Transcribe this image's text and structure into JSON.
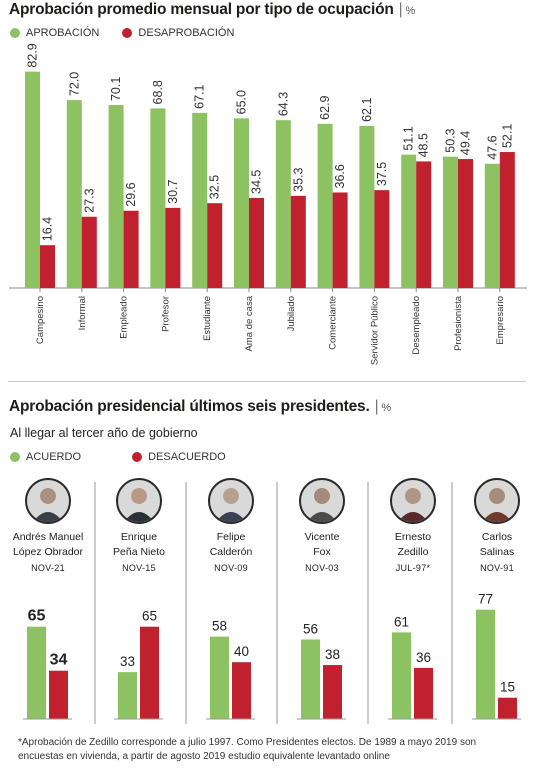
{
  "colors": {
    "approve": "#8dc262",
    "disapprove": "#c1212f"
  },
  "section1": {
    "title": "Aprobación promedio mensual por tipo de ocupación",
    "unit": "%",
    "legend": {
      "approve": "APROBACIÓN",
      "disapprove": "DESAPROBACIÓN"
    }
  },
  "section2": {
    "title": "Aprobación presidencial últimos seis presidentes.",
    "unit": "%",
    "subtitle": "Al llegar al tercer año de gobierno",
    "legend": {
      "approve": "ACUERDO",
      "disapprove": "DESACUERDO"
    }
  },
  "presidents": [
    {
      "name_line1": "Andrés Manuel",
      "name_line2": "López Obrador",
      "date": "NOV-21"
    },
    {
      "name_line1": "Enrique",
      "name_line2": "Peña Nieto",
      "date": "NOV-15"
    },
    {
      "name_line1": "Felipe",
      "name_line2": "Calderón",
      "date": "NOV-09"
    },
    {
      "name_line1": "Vicente",
      "name_line2": "Fox",
      "date": "NOV-03"
    },
    {
      "name_line1": "Ernesto",
      "name_line2": "Zedillo",
      "date": "JUL-97*"
    },
    {
      "name_line1": "Carlos",
      "name_line2": "Salinas",
      "date": "NOV-91"
    }
  ],
  "footnote": "*Aprobación de Zedillo corresponde a julio 1997. Como Presidentes electos. De 1989 a mayo 2019 son encuestas en vivienda, a partir de agosto 2019 estudio equivalente levantado online",
  "chart_data": [
    {
      "type": "bar",
      "title": "Aprobación promedio mensual por tipo de ocupación",
      "categories": [
        "Campesino",
        "Informal",
        "Empleado",
        "Profesor",
        "Estudiante",
        "Ama de casa",
        "Jubilado",
        "Comerciante",
        "Servidor Público",
        "Desempleado",
        "Profesionista",
        "Empresario"
      ],
      "series": [
        {
          "name": "APROBACIÓN",
          "values": [
            82.9,
            72.0,
            70.1,
            68.8,
            67.1,
            65.0,
            64.3,
            62.9,
            62.1,
            51.1,
            50.3,
            47.6
          ]
        },
        {
          "name": "DESAPROBACIÓN",
          "values": [
            16.4,
            27.3,
            29.6,
            30.7,
            32.5,
            34.5,
            35.3,
            36.6,
            37.5,
            48.5,
            49.4,
            52.1
          ]
        }
      ],
      "value_labels": {
        "approve": [
          "82.9",
          "72.0",
          "70.1",
          "68.8",
          "67.1",
          "65.0",
          "64.3",
          "62.9",
          "62.1",
          "51.1",
          "50.3",
          "47.6"
        ],
        "disapprove": [
          "16.4",
          "27.3",
          "29.6",
          "30.7",
          "32.5",
          "34.5",
          "35.3",
          "36.6",
          "37.5",
          "48.5",
          "49.4",
          "52.1"
        ]
      },
      "ylim": [
        0,
        100
      ],
      "grid": false,
      "legend": "top-left"
    },
    {
      "type": "bar",
      "title": "Aprobación presidencial últimos seis presidentes.",
      "categories": [
        "Andrés Manuel López Obrador",
        "Enrique Peña Nieto",
        "Felipe Calderón",
        "Vicente Fox",
        "Ernesto Zedillo",
        "Carlos Salinas"
      ],
      "series": [
        {
          "name": "ACUERDO",
          "values": [
            65,
            33,
            58,
            56,
            61,
            77
          ]
        },
        {
          "name": "DESACUERDO",
          "values": [
            34,
            65,
            40,
            38,
            36,
            15
          ]
        }
      ],
      "ylim": [
        0,
        100
      ],
      "grid": false,
      "legend": "top-left"
    }
  ]
}
